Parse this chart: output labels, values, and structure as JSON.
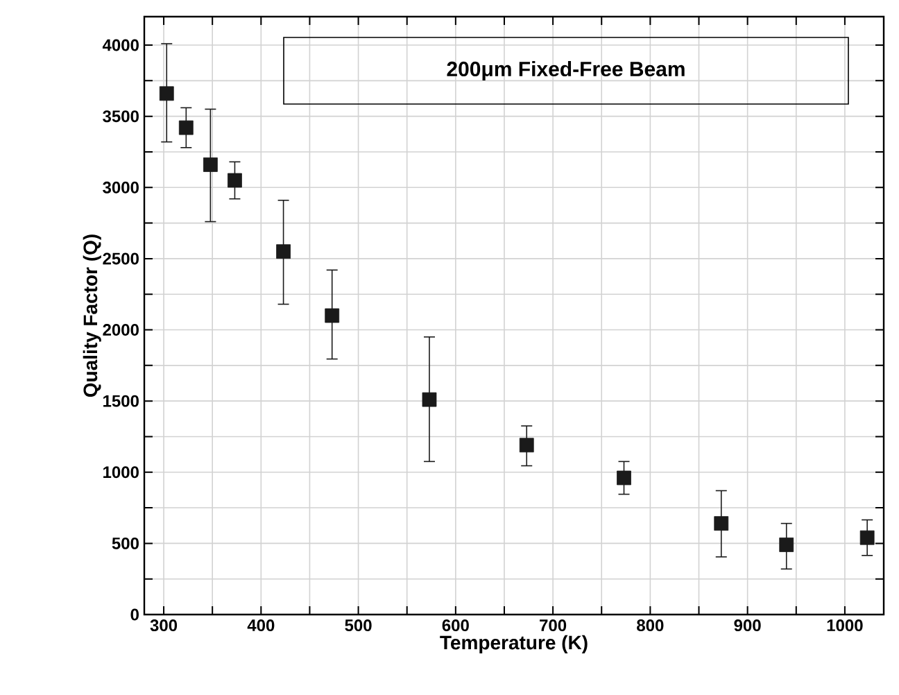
{
  "chart_data": {
    "type": "scatter",
    "xlabel": "Temperature (K)",
    "ylabel": "Quality Factor (Q)",
    "annotations": [
      "200μm Fixed-Free Beam"
    ],
    "x": [
      303,
      323,
      348,
      373,
      423,
      473,
      573,
      673,
      773,
      873,
      940,
      1023
    ],
    "values": [
      3660,
      3420,
      3160,
      3050,
      2550,
      2100,
      1510,
      1190,
      960,
      640,
      490,
      540
    ],
    "errors": [
      [
        3320,
        4010
      ],
      [
        3280,
        3560
      ],
      [
        2760,
        3550
      ],
      [
        2920,
        3180
      ],
      [
        2180,
        2910
      ],
      [
        1795,
        2420
      ],
      [
        1075,
        1950
      ],
      [
        1045,
        1325
      ],
      [
        845,
        1075
      ],
      [
        405,
        870
      ],
      [
        320,
        640
      ],
      [
        415,
        665
      ]
    ],
    "color": "#1a1a1a",
    "marker": "square",
    "xlim": [
      280,
      1040
    ],
    "ylim": [
      0,
      4200
    ],
    "xticks": [
      300,
      {
        "value": 350,
        "label": null
      },
      400,
      {
        "value": 450,
        "label": null
      },
      500,
      {
        "value": 550,
        "label": null
      },
      600,
      {
        "value": 650,
        "label": null
      },
      700,
      {
        "value": 750,
        "label": null
      },
      800,
      {
        "value": 850,
        "label": null
      },
      900,
      {
        "value": 950,
        "label": null
      },
      1000
    ],
    "yticks": [
      0,
      {
        "value": 250,
        "label": null
      },
      500,
      {
        "value": 750,
        "label": null
      },
      1000,
      {
        "value": 1250,
        "label": null
      },
      1500,
      {
        "value": 1750,
        "label": null
      },
      2000,
      {
        "value": 2250,
        "label": null
      },
      2500,
      {
        "value": 2750,
        "label": null
      },
      3000,
      {
        "value": 3250,
        "label": null
      },
      3500,
      {
        "value": 3750,
        "label": null
      },
      4000
    ],
    "grid": true
  }
}
